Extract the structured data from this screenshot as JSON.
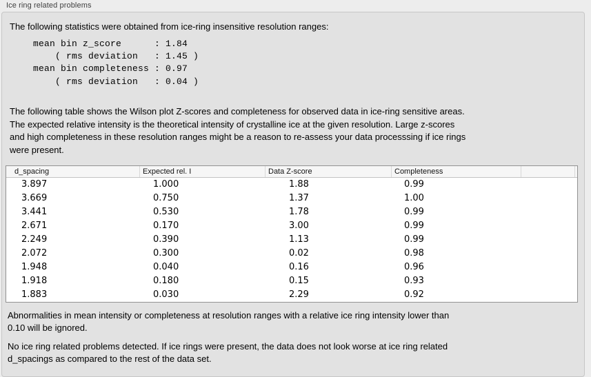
{
  "panel": {
    "title": "Ice ring related problems"
  },
  "intro": {
    "text": "The following statistics were obtained from ice-ring insensitive resolution ranges:"
  },
  "stats_block": {
    "text": "mean bin z_score      : 1.84\n    ( rms deviation   : 1.45 )\nmean bin completeness : 0.97\n    ( rms deviation   : 0.04 )"
  },
  "description": {
    "text": "The following table shows the Wilson plot Z-scores and completeness for observed data in ice-ring sensitive areas.\nThe expected relative intensity is the theoretical intensity of crystalline ice at the given resolution. Large z-scores\nand high completeness in these resolution ranges might be a reason to re-assess your data processsing if ice rings\nwere present."
  },
  "table": {
    "columns": [
      "d_spacing",
      "Expected rel. I",
      "Data Z-score",
      "Completeness"
    ],
    "rows": [
      [
        "3.897",
        "1.000",
        "1.88",
        "0.99"
      ],
      [
        "3.669",
        "0.750",
        "1.37",
        "1.00"
      ],
      [
        "3.441",
        "0.530",
        "1.78",
        "0.99"
      ],
      [
        "2.671",
        "0.170",
        "3.00",
        "0.99"
      ],
      [
        "2.249",
        "0.390",
        "1.13",
        "0.99"
      ],
      [
        "2.072",
        "0.300",
        "0.02",
        "0.98"
      ],
      [
        "1.948",
        "0.040",
        "0.16",
        "0.96"
      ],
      [
        "1.918",
        "0.180",
        "0.15",
        "0.93"
      ],
      [
        "1.883",
        "0.030",
        "2.29",
        "0.92"
      ]
    ]
  },
  "footnotes": {
    "ignore_note": "Abnormalities in mean intensity or completeness at resolution ranges with a relative ice ring intensity lower than\n0.10 will be ignored.",
    "conclusion": "No ice ring related problems detected. If ice rings were present, the data does not look worse at ice ring related\nd_spacings as compared to the rest of the data set."
  },
  "colors": {
    "window_bg": "#ededed",
    "panel_bg": "#e2e2e2",
    "panel_border": "#c6c6c6",
    "table_bg": "#ffffff",
    "table_border": "#919191",
    "table_header_bg": "#f6f6f6",
    "text": "#000000"
  }
}
